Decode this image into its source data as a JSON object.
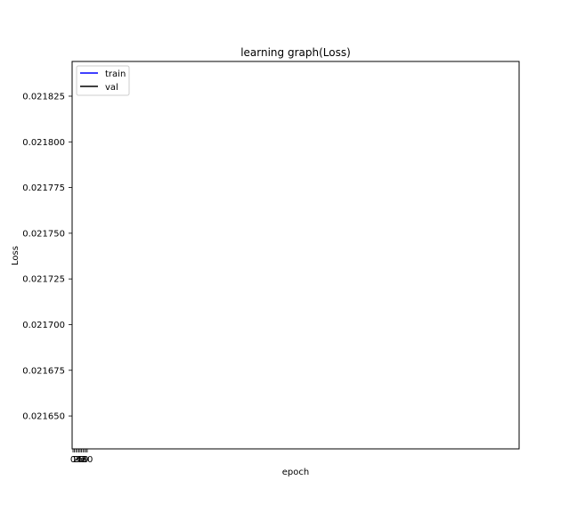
{
  "chart_data": {
    "type": "line",
    "title": "learning graph(Loss)",
    "xlabel": "epoch",
    "ylabel": "Loss",
    "ylim": [
      0.021632,
      0.021844
    ],
    "y_ticks": [
      0.02165,
      0.021675,
      0.0217,
      0.021725,
      0.02175,
      0.021775,
      0.0218,
      0.021825
    ],
    "y_tick_labels": [
      "0.021650",
      "0.021675",
      "0.021700",
      "0.021725",
      "0.021750",
      "0.021775",
      "0.021800",
      "0.021825"
    ],
    "x_tick_labels": [
      "0",
      "1",
      "2",
      "3",
      "4",
      "5",
      "6",
      "7",
      "8",
      "9",
      "10"
    ],
    "series": [
      {
        "name": "train",
        "color": "#0000ff",
        "values": []
      },
      {
        "name": "val",
        "color": "#000000",
        "values": []
      }
    ],
    "legend_position": "top-left",
    "grid": false
  }
}
